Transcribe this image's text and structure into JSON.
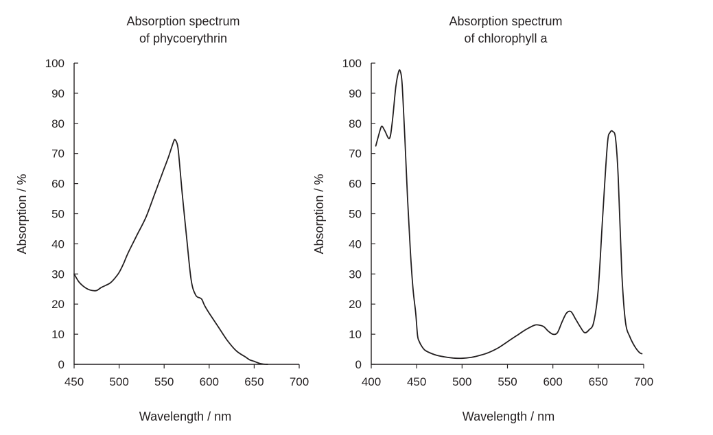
{
  "chart_data": [
    {
      "type": "line",
      "title": [
        "Absorption spectrum",
        "of phycoerythrin"
      ],
      "xlabel": "Wavelength / nm",
      "ylabel": "Absorption / %",
      "xlim": [
        450,
        700
      ],
      "ylim": [
        0,
        100
      ],
      "x_ticks": [
        "450",
        "500",
        "550",
        "600",
        "650",
        "700"
      ],
      "y_ticks": [
        "0",
        "10",
        "20",
        "30",
        "40",
        "50",
        "60",
        "70",
        "80",
        "90",
        "100"
      ],
      "grid": false,
      "series": [
        {
          "name": "phycoerythrin",
          "x": [
            450,
            455,
            460,
            465,
            470,
            475,
            480,
            485,
            490,
            495,
            500,
            505,
            510,
            520,
            530,
            540,
            550,
            555,
            560,
            562,
            565,
            567,
            570,
            575,
            580,
            585,
            590,
            592,
            595,
            600,
            610,
            620,
            630,
            640,
            645,
            650,
            655,
            660,
            665
          ],
          "y": [
            30,
            27.5,
            26,
            25,
            24.5,
            24.5,
            25.5,
            26.2,
            27,
            28.5,
            30.5,
            33.5,
            37,
            43,
            49,
            57,
            65,
            69,
            73.5,
            74.6,
            72.5,
            67,
            57,
            42,
            28,
            23,
            22,
            21.5,
            19.5,
            17,
            12.5,
            8,
            4.5,
            2.5,
            1.5,
            1,
            0.4,
            0.1,
            0
          ]
        }
      ]
    },
    {
      "type": "line",
      "title": [
        "Absorption spectrum",
        "of chlorophyll a"
      ],
      "xlabel": "Wavelength / nm",
      "ylabel": "Absorption / %",
      "xlim": [
        400,
        700
      ],
      "ylim": [
        0,
        100
      ],
      "x_ticks": [
        "400",
        "450",
        "500",
        "550",
        "600",
        "650",
        "700"
      ],
      "y_ticks": [
        "0",
        "10",
        "20",
        "30",
        "40",
        "50",
        "60",
        "70",
        "80",
        "90",
        "100"
      ],
      "grid": false,
      "series": [
        {
          "name": "chlorophyll a",
          "x": [
            405,
            410,
            412,
            415,
            420,
            423,
            427,
            430,
            432,
            434,
            437,
            440,
            443,
            446,
            449,
            451,
            453,
            456,
            460,
            470,
            480,
            490,
            500,
            510,
            520,
            530,
            540,
            550,
            560,
            570,
            580,
            585,
            590,
            595,
            600,
            605,
            610,
            615,
            620,
            625,
            630,
            635,
            640,
            645,
            650,
            655,
            660,
            663,
            666,
            669,
            672,
            676,
            680,
            685,
            690,
            695,
            698
          ],
          "y": [
            72.5,
            78,
            79,
            77.5,
            75,
            80,
            92,
            97,
            97.3,
            93,
            75,
            55,
            38,
            25,
            17,
            9.5,
            7.5,
            5.8,
            4.5,
            3.2,
            2.5,
            2.1,
            2,
            2.3,
            3,
            4,
            5.5,
            7.5,
            9.5,
            11.5,
            13,
            13,
            12.5,
            11,
            10,
            10.5,
            14,
            17,
            17.5,
            15,
            12.5,
            10.5,
            11.5,
            14,
            25,
            50,
            73,
            77,
            77.3,
            75,
            62,
            30,
            14,
            9,
            6,
            4,
            3.5
          ]
        }
      ]
    }
  ]
}
